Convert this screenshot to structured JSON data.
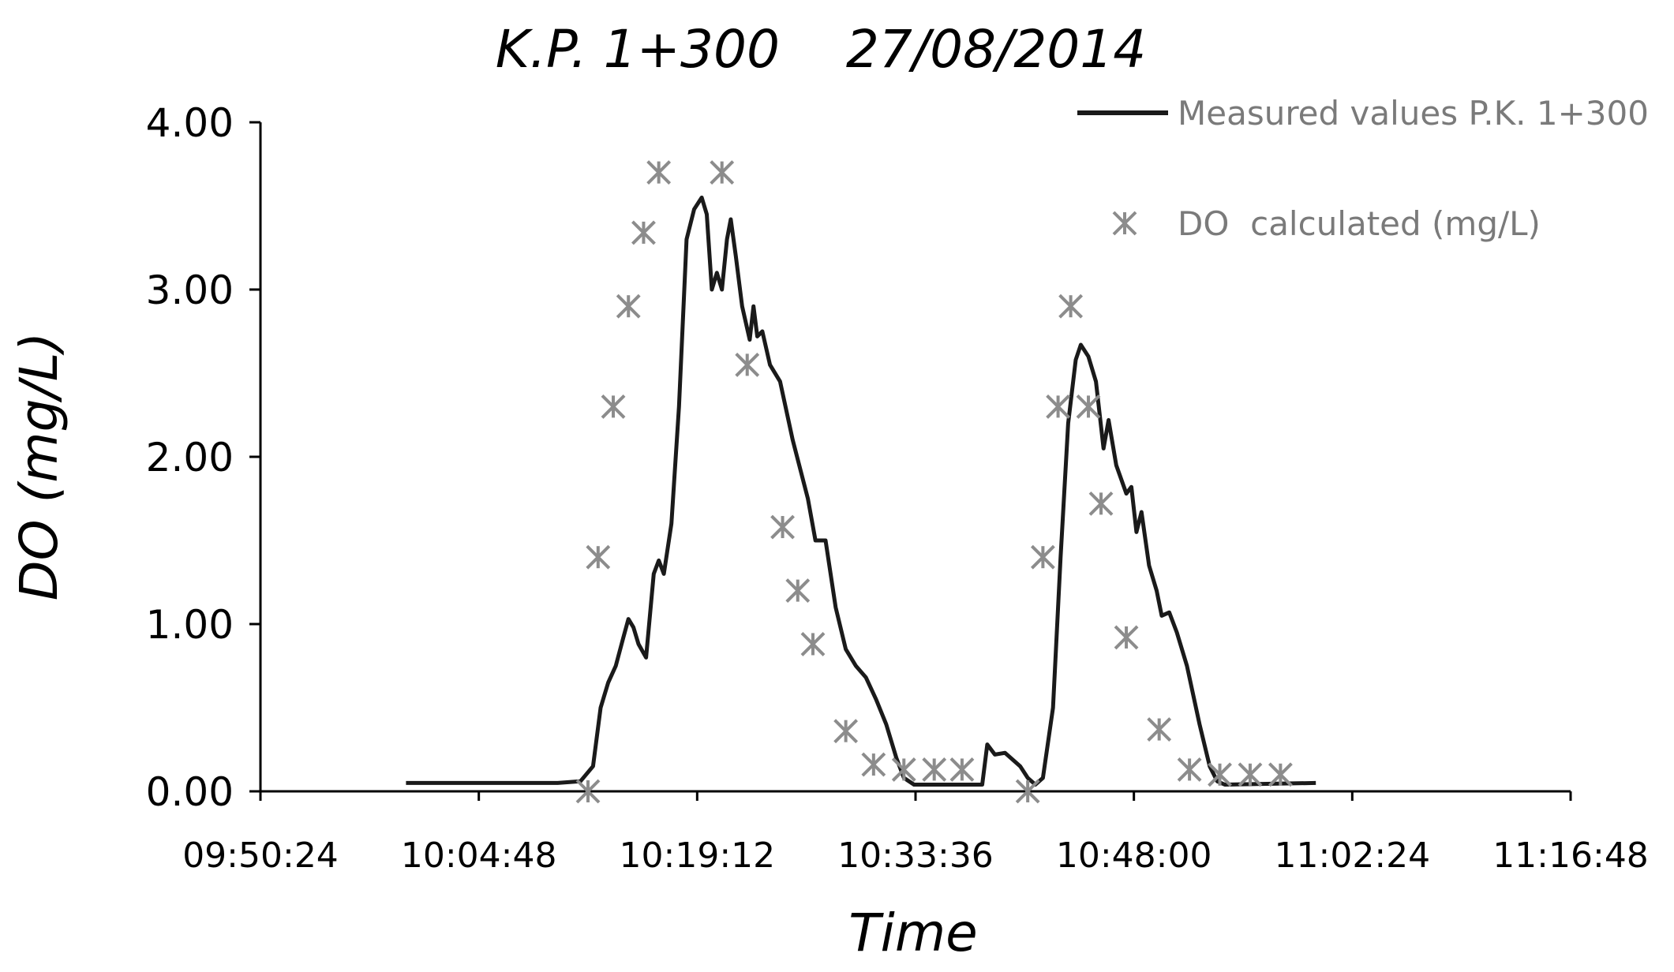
{
  "chart_data": {
    "type": "line+scatter",
    "title": "K.P. 1+300    27/08/2014",
    "xlabel": "Time",
    "ylabel": "DO (mg/L)",
    "x_unit": "time of day (hh:mm:ss)",
    "xlim": [
      "09:50:24",
      "11:16:48"
    ],
    "ylim": [
      0,
      4
    ],
    "x_ticks": [
      "09:50:24",
      "10:04:48",
      "10:19:12",
      "10:33:36",
      "10:48:00",
      "11:02:24",
      "11:16:48"
    ],
    "y_ticks": [
      "0.00",
      "1.00",
      "2.00",
      "3.00",
      "4.00"
    ],
    "grid": false,
    "legend": "top-right",
    "series": [
      {
        "name": "Measured values P.K. 1+300",
        "kind": "line",
        "color": "#1a1a1a",
        "points": [
          [
            "10:00:00",
            0.05
          ],
          [
            "10:10:00",
            0.05
          ],
          [
            "10:11:30",
            0.06
          ],
          [
            "10:12:20",
            0.15
          ],
          [
            "10:12:50",
            0.5
          ],
          [
            "10:13:20",
            0.65
          ],
          [
            "10:13:50",
            0.75
          ],
          [
            "10:14:20",
            0.92
          ],
          [
            "10:14:40",
            1.03
          ],
          [
            "10:15:00",
            0.98
          ],
          [
            "10:15:20",
            0.88
          ],
          [
            "10:15:50",
            0.8
          ],
          [
            "10:16:20",
            1.3
          ],
          [
            "10:16:40",
            1.38
          ],
          [
            "10:17:00",
            1.3
          ],
          [
            "10:17:30",
            1.6
          ],
          [
            "10:18:00",
            2.3
          ],
          [
            "10:18:30",
            3.3
          ],
          [
            "10:19:00",
            3.48
          ],
          [
            "10:19:30",
            3.55
          ],
          [
            "10:19:50",
            3.45
          ],
          [
            "10:20:10",
            3.0
          ],
          [
            "10:20:30",
            3.1
          ],
          [
            "10:20:50",
            3.0
          ],
          [
            "10:21:10",
            3.3
          ],
          [
            "10:21:25",
            3.42
          ],
          [
            "10:21:45",
            3.2
          ],
          [
            "10:22:10",
            2.9
          ],
          [
            "10:22:40",
            2.7
          ],
          [
            "10:22:55",
            2.9
          ],
          [
            "10:23:10",
            2.72
          ],
          [
            "10:23:30",
            2.75
          ],
          [
            "10:24:00",
            2.55
          ],
          [
            "10:24:40",
            2.45
          ],
          [
            "10:25:30",
            2.1
          ],
          [
            "10:26:30",
            1.75
          ],
          [
            "10:27:00",
            1.5
          ],
          [
            "10:27:40",
            1.5
          ],
          [
            "10:28:20",
            1.1
          ],
          [
            "10:29:00",
            0.85
          ],
          [
            "10:29:40",
            0.75
          ],
          [
            "10:30:20",
            0.68
          ],
          [
            "10:31:00",
            0.55
          ],
          [
            "10:31:40",
            0.4
          ],
          [
            "10:32:20",
            0.2
          ],
          [
            "10:32:50",
            0.08
          ],
          [
            "10:33:30",
            0.04
          ],
          [
            "10:38:00",
            0.04
          ],
          [
            "10:38:20",
            0.28
          ],
          [
            "10:38:50",
            0.22
          ],
          [
            "10:39:30",
            0.23
          ],
          [
            "10:40:30",
            0.15
          ],
          [
            "10:41:00",
            0.08
          ],
          [
            "10:41:30",
            0.04
          ],
          [
            "10:42:00",
            0.08
          ],
          [
            "10:42:40",
            0.5
          ],
          [
            "10:43:10",
            1.4
          ],
          [
            "10:43:40",
            2.2
          ],
          [
            "10:44:10",
            2.58
          ],
          [
            "10:44:30",
            2.67
          ],
          [
            "10:45:00",
            2.6
          ],
          [
            "10:45:30",
            2.45
          ],
          [
            "10:46:00",
            2.05
          ],
          [
            "10:46:20",
            2.22
          ],
          [
            "10:46:50",
            1.95
          ],
          [
            "10:47:30",
            1.78
          ],
          [
            "10:47:50",
            1.82
          ],
          [
            "10:48:10",
            1.55
          ],
          [
            "10:48:30",
            1.67
          ],
          [
            "10:49:00",
            1.35
          ],
          [
            "10:49:30",
            1.2
          ],
          [
            "10:49:50",
            1.05
          ],
          [
            "10:50:20",
            1.07
          ],
          [
            "10:50:50",
            0.95
          ],
          [
            "10:51:30",
            0.75
          ],
          [
            "10:52:20",
            0.4
          ],
          [
            "10:53:00",
            0.15
          ],
          [
            "10:53:30",
            0.06
          ],
          [
            "10:54:00",
            0.04
          ],
          [
            "11:00:00",
            0.05
          ]
        ]
      },
      {
        "name": "DO  calculated (mg/L)",
        "kind": "scatter",
        "marker": "asterisk",
        "color": "#8c8c8c",
        "points": [
          [
            "10:12:00",
            0.0
          ],
          [
            "10:12:40",
            1.4
          ],
          [
            "10:13:40",
            2.3
          ],
          [
            "10:14:40",
            2.9
          ],
          [
            "10:15:40",
            3.34
          ],
          [
            "10:16:40",
            3.7
          ],
          [
            "10:20:50",
            3.7
          ],
          [
            "10:22:30",
            2.55
          ],
          [
            "10:24:50",
            1.58
          ],
          [
            "10:25:50",
            1.2
          ],
          [
            "10:26:50",
            0.88
          ],
          [
            "10:29:00",
            0.36
          ],
          [
            "10:30:50",
            0.16
          ],
          [
            "10:32:50",
            0.13
          ],
          [
            "10:34:50",
            0.13
          ],
          [
            "10:36:40",
            0.13
          ],
          [
            "10:41:00",
            0.0
          ],
          [
            "10:42:00",
            1.4
          ],
          [
            "10:43:00",
            2.3
          ],
          [
            "10:43:50",
            2.9
          ],
          [
            "10:45:00",
            2.3
          ],
          [
            "10:45:50",
            1.72
          ],
          [
            "10:47:30",
            0.92
          ],
          [
            "10:49:40",
            0.37
          ],
          [
            "10:51:40",
            0.13
          ],
          [
            "10:53:40",
            0.1
          ],
          [
            "10:55:40",
            0.1
          ],
          [
            "10:57:40",
            0.1
          ]
        ]
      }
    ]
  }
}
